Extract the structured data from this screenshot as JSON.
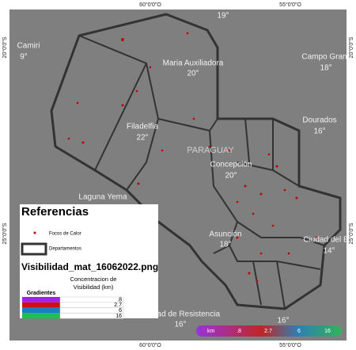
{
  "grid_labels": {
    "top": [
      "60°0'0\"O",
      "55°0'0\"O"
    ],
    "bottom": [
      "60°0'0\"O",
      "55°0'0\"O"
    ],
    "left": [
      "20°0'0\"S",
      "25°0'0\"S"
    ],
    "right": [
      "20°0'0\"S",
      "25°0'0\"S"
    ]
  },
  "places": [
    {
      "name": "Camiri",
      "temp": "9°"
    },
    {
      "name": "Maria Auxiliadora",
      "temp": "20°"
    },
    {
      "name": "Campo Gran",
      "temp": "18°"
    },
    {
      "name": "Dourados",
      "temp": "16°"
    },
    {
      "name": "Filadelfia",
      "temp": "22°"
    },
    {
      "name": "Concepción",
      "temp": "20°"
    },
    {
      "name": "Laguna Yema"
    },
    {
      "name": "Asunción",
      "temp": "18°"
    },
    {
      "name": "Ciudad del E",
      "temp": "14°"
    },
    {
      "name": "Ciudad de Resistencia",
      "temp": "16°"
    }
  ],
  "extra_temps": [
    "19°",
    "16°"
  ],
  "country": "PARAGUAY",
  "legend": {
    "title": "Referencias",
    "items": [
      "Focos de Calor",
      "Departamentos"
    ],
    "layer": "Visibilidad_mat_16062022.png",
    "columns": [
      "Gradientes",
      "Concentracion de Visibilidad (km)"
    ],
    "rows": [
      {
        "color": "#a020f0",
        "label": ".8"
      },
      {
        "color": "#d01010",
        "label": "2.7"
      },
      {
        "color": "#1a7fc0",
        "label": "6"
      },
      {
        "color": "#20c050",
        "label": "16"
      }
    ]
  },
  "colorbar": {
    "unit": "km",
    "labels": [
      ".8",
      "2.7",
      "6",
      "16"
    ]
  }
}
